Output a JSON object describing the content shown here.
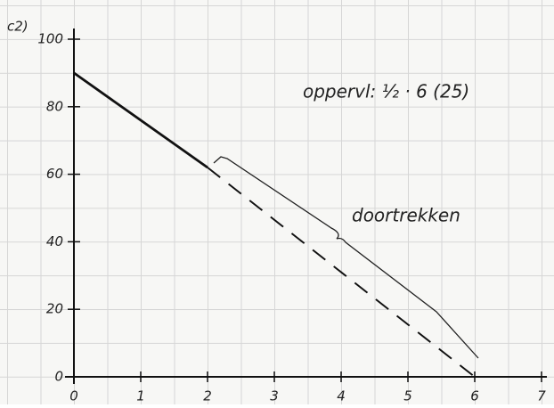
{
  "chart_data": {
    "type": "line",
    "title": "c2)",
    "annotations": [
      "oppervl: ½ · 6 (25)",
      "doortrekken"
    ],
    "series": [
      {
        "x": [
          0,
          2
        ],
        "values": [
          90,
          62
        ],
        "color": "#111111",
        "line_style": "solid"
      },
      {
        "x": [
          2,
          6
        ],
        "values": [
          62,
          0
        ],
        "color": "#111111",
        "line_style": "dashed"
      }
    ],
    "xlim": [
      0,
      7
    ],
    "xticks": [
      0,
      1,
      2,
      3,
      4,
      5,
      6,
      7
    ],
    "ylim": [
      0,
      100
    ],
    "yticks": [
      0,
      20,
      40,
      60,
      80,
      100
    ]
  }
}
